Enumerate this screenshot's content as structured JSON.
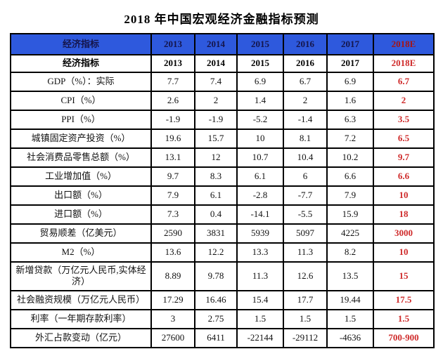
{
  "title": "2018 年中国宏观经济金融指标预测",
  "colors": {
    "header_background": "#2e59dd",
    "header_text": "#15154a",
    "header_forecast_text": "#a51515",
    "forecast_red": "#cf2b2b",
    "border": "#000000",
    "background": "#ffffff"
  },
  "chart_data": {
    "type": "table",
    "title": "2018 年中国宏观经济金融指标预测",
    "column_headers": [
      "经济指标",
      "2013",
      "2014",
      "2015",
      "2016",
      "2017",
      "2018E"
    ],
    "header_note": "header row repeated twice: once blue, once white; 2018E shown in red",
    "rows": [
      {
        "label": "GDP（%）：实际",
        "values": [
          "7.7",
          "7.4",
          "6.9",
          "6.7",
          "6.9"
        ],
        "forecast": "6.7"
      },
      {
        "label": "CPI（%）",
        "values": [
          "2.6",
          "2",
          "1.4",
          "2",
          "1.6"
        ],
        "forecast": "2"
      },
      {
        "label": "PPI（%）",
        "values": [
          "-1.9",
          "-1.9",
          "-5.2",
          "-1.4",
          "6.3"
        ],
        "forecast": "3.5"
      },
      {
        "label": "城镇固定资产投资（%）",
        "values": [
          "19.6",
          "15.7",
          "10",
          "8.1",
          "7.2"
        ],
        "forecast": "6.5"
      },
      {
        "label": "社会消费品零售总额（%）",
        "values": [
          "13.1",
          "12",
          "10.7",
          "10.4",
          "10.2"
        ],
        "forecast": "9.7"
      },
      {
        "label": "工业增加值（%）",
        "values": [
          "9.7",
          "8.3",
          "6.1",
          "6",
          "6.6"
        ],
        "forecast": "6.6"
      },
      {
        "label": "出口额（%）",
        "values": [
          "7.9",
          "6.1",
          "-2.8",
          "-7.7",
          "7.9"
        ],
        "forecast": "10"
      },
      {
        "label": "进口额（%）",
        "values": [
          "7.3",
          "0.4",
          "-14.1",
          "-5.5",
          "15.9"
        ],
        "forecast": "18"
      },
      {
        "label": "贸易顺差（亿美元）",
        "values": [
          "2590",
          "3831",
          "5939",
          "5097",
          "4225"
        ],
        "forecast": "3000"
      },
      {
        "label": "M2（%）",
        "values": [
          "13.6",
          "12.2",
          "13.3",
          "11.3",
          "8.2"
        ],
        "forecast": "10"
      },
      {
        "label": "新增贷款（万亿元人民币,实体经济）",
        "values": [
          "8.89",
          "9.78",
          "11.3",
          "12.6",
          "13.5"
        ],
        "forecast": "15"
      },
      {
        "label": "社会融资规模（万亿元人民币）",
        "values": [
          "17.29",
          "16.46",
          "15.4",
          "17.7",
          "19.44"
        ],
        "forecast": "17.5"
      },
      {
        "label": "利率（一年期存款利率）",
        "values": [
          "3",
          "2.75",
          "1.5",
          "1.5",
          "1.5"
        ],
        "forecast": "1.5"
      },
      {
        "label": "外汇占款变动（亿元）",
        "values": [
          "27600",
          "6411",
          "-22144",
          "-29112",
          "-4636"
        ],
        "forecast": "700-900"
      }
    ]
  }
}
